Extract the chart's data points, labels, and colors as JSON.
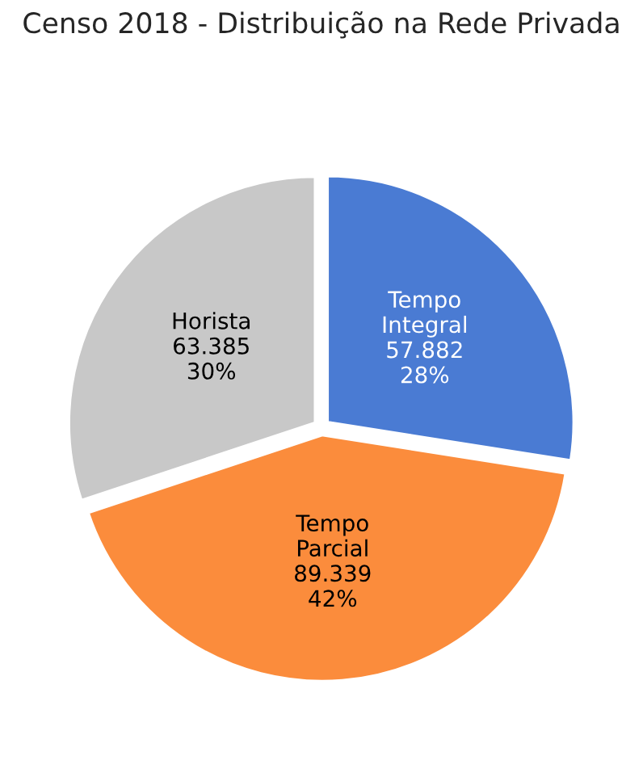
{
  "chart_data": {
    "type": "pie",
    "title": "Censo 2018 - Distribuição na Rede Privada",
    "categories": [
      "Tempo Integral",
      "Tempo Parcial",
      "Horista"
    ],
    "values": [
      57882,
      89339,
      63385
    ],
    "value_labels": [
      "57.882\n28%",
      "89.339\n42%",
      "63.385\n30%"
    ],
    "colors": [
      "#4a7bd3",
      "#fb8c3c",
      "#c8c8c8"
    ]
  }
}
